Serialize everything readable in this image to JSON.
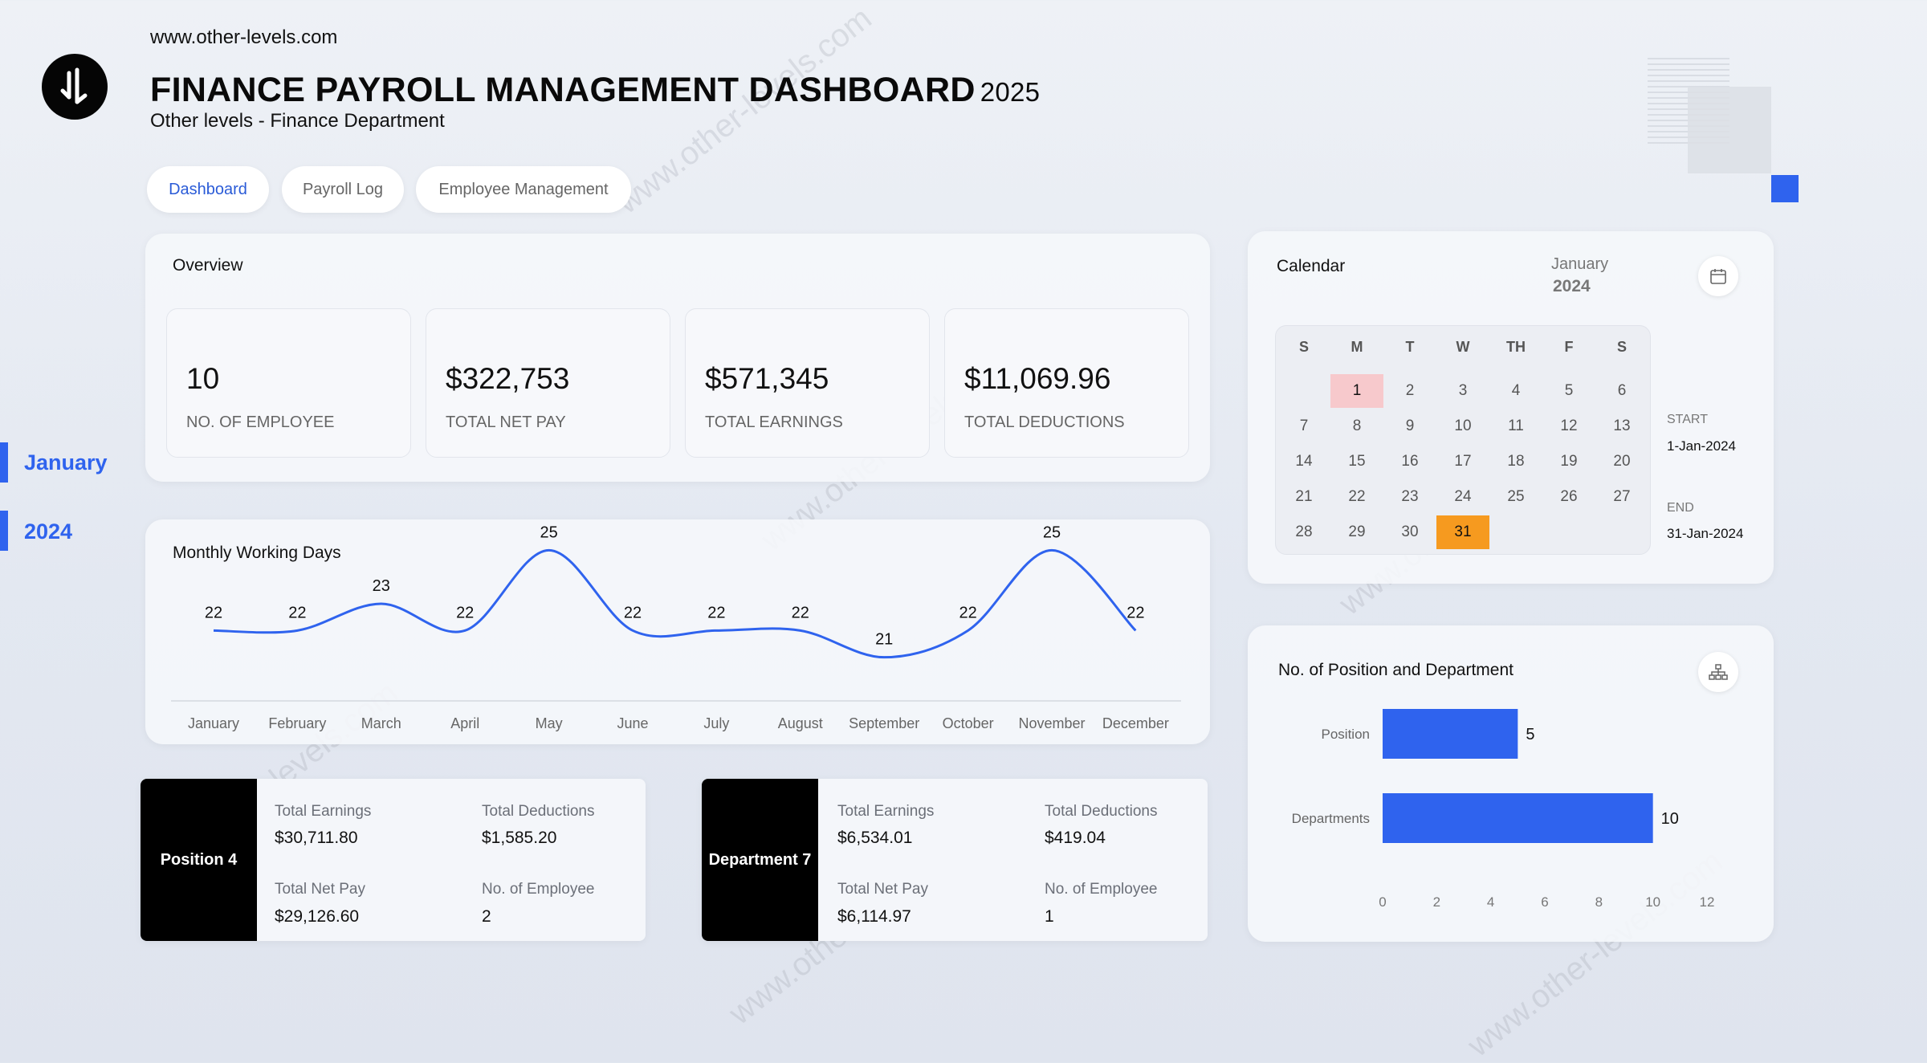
{
  "header": {
    "site": "www.other-levels.com",
    "title": "FINANCE PAYROLL MANAGEMENT DASHBOARD",
    "year": "2025",
    "subtitle": "Other levels - Finance Department",
    "logo_icon": "brand-logo-icon"
  },
  "tabs": [
    {
      "label": "Dashboard",
      "active": true
    },
    {
      "label": "Payroll Log",
      "active": false
    },
    {
      "label": "Employee Management",
      "active": false
    }
  ],
  "period": {
    "month": "January",
    "year": "2024"
  },
  "overview": {
    "title": "Overview",
    "kpis": [
      {
        "value": "10",
        "label": "NO. OF EMPLOYEE"
      },
      {
        "value": "$322,753",
        "label": "TOTAL NET PAY"
      },
      {
        "value": "$571,345",
        "label": "TOTAL EARNINGS"
      },
      {
        "value": "$11,069.96",
        "label": "TOTAL DEDUCTIONS"
      }
    ]
  },
  "working_days": {
    "title": "Monthly Working Days"
  },
  "position_panel": {
    "name": "Position 4",
    "earnings_label": "Total Earnings",
    "earnings": "$30,711.80",
    "deductions_label": "Total Deductions",
    "deductions": "$1,585.20",
    "netpay_label": "Total Net Pay",
    "netpay": "$29,126.60",
    "employees_label": "No. of Employee",
    "employees": "2"
  },
  "department_panel": {
    "name": "Department 7",
    "earnings_label": "Total Earnings",
    "earnings": "$6,534.01",
    "deductions_label": "Total Deductions",
    "deductions": "$419.04",
    "netpay_label": "Total Net Pay",
    "netpay": "$6,114.97",
    "employees_label": "No. of Employee",
    "employees": "1"
  },
  "calendar": {
    "title": "Calendar",
    "month": "January",
    "year": "2024",
    "weekdays": [
      "S",
      "M",
      "T",
      "W",
      "TH",
      "F",
      "S"
    ],
    "leading_blanks": 1,
    "days_in_month": 31,
    "start_day": 1,
    "end_day": 31,
    "start_label": "START",
    "start_date": "1-Jan-2024",
    "end_label": "END",
    "end_date": "31-Jan-2024",
    "highlight_start_color": "#f7c9cc",
    "highlight_end_color": "#f69a1f"
  },
  "position_dept": {
    "title": "No. of Position and Department"
  },
  "chart_data": [
    {
      "type": "line",
      "title": "Monthly Working Days",
      "categories": [
        "January",
        "February",
        "March",
        "April",
        "May",
        "June",
        "July",
        "August",
        "September",
        "October",
        "November",
        "December"
      ],
      "values": [
        22,
        22,
        23,
        22,
        25,
        22,
        22,
        22,
        21,
        22,
        25,
        22
      ],
      "data_labels": true,
      "color": "#2f63ee",
      "grid": false
    },
    {
      "type": "bar",
      "orientation": "horizontal",
      "title": "No. of Position and Department",
      "categories": [
        "Position",
        "Departments"
      ],
      "values": [
        5,
        10
      ],
      "xlim": [
        0,
        12
      ],
      "xticks": [
        0,
        2,
        4,
        6,
        8,
        10,
        12
      ],
      "color": "#2f63ee",
      "data_labels": true,
      "grid": false
    }
  ],
  "watermark": "www.other-levels.com",
  "colors": {
    "accent": "#2f63ee",
    "dark": "#000000"
  }
}
